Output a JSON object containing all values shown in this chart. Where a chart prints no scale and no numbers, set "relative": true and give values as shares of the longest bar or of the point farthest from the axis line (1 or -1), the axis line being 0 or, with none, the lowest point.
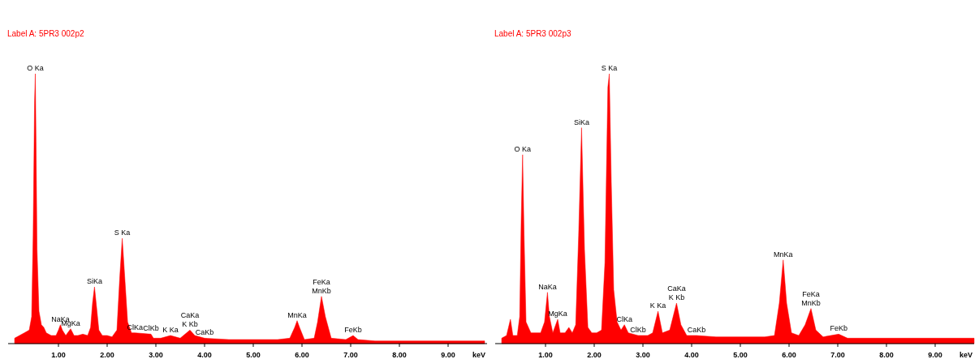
{
  "chart_data": [
    {
      "type": "area",
      "subtitle": "Label A: 5PR3 002p2",
      "xlabel": "keV",
      "relative": true,
      "xlim": [
        0,
        9.8
      ],
      "xticks": [
        {
          "value": 1,
          "label": "1.00"
        },
        {
          "value": 2,
          "label": "2.00"
        },
        {
          "value": 3,
          "label": "3.00"
        },
        {
          "value": 4,
          "label": "4.00"
        },
        {
          "value": 5,
          "label": "5.00"
        },
        {
          "value": 6,
          "label": "6.00"
        },
        {
          "value": 7,
          "label": "7.00"
        },
        {
          "value": 8,
          "label": "8.00"
        },
        {
          "value": 9,
          "label": "9.00"
        }
      ],
      "x": [
        0.1,
        0.2,
        0.3,
        0.4,
        0.45,
        0.48,
        0.51,
        0.525,
        0.54,
        0.56,
        0.6,
        0.65,
        0.7,
        0.75,
        0.85,
        0.95,
        1.0,
        1.04,
        1.08,
        1.15,
        1.25,
        1.32,
        1.4,
        1.5,
        1.6,
        1.66,
        1.7,
        1.74,
        1.78,
        1.83,
        1.9,
        2.0,
        2.1,
        2.2,
        2.26,
        2.31,
        2.36,
        2.42,
        2.5,
        2.57,
        2.9,
        2.95,
        3.1,
        3.3,
        3.5,
        3.7,
        3.8,
        4.0,
        4.5,
        5.0,
        5.5,
        5.75,
        5.85,
        5.9,
        5.95,
        6.05,
        6.25,
        6.32,
        6.4,
        6.48,
        6.6,
        6.9,
        7.05,
        7.15,
        7.5,
        8.0,
        8.5,
        9.0,
        9.5,
        9.75
      ],
      "series": [
        {
          "color": "#ff0000",
          "values": [
            0.02,
            0.03,
            0.04,
            0.05,
            0.1,
            0.4,
            0.9,
            1.0,
            0.75,
            0.35,
            0.12,
            0.07,
            0.06,
            0.04,
            0.03,
            0.03,
            0.05,
            0.07,
            0.05,
            0.03,
            0.055,
            0.03,
            0.03,
            0.035,
            0.03,
            0.06,
            0.15,
            0.21,
            0.14,
            0.05,
            0.03,
            0.03,
            0.025,
            0.05,
            0.25,
            0.39,
            0.25,
            0.08,
            0.04,
            0.04,
            0.035,
            0.02,
            0.02,
            0.03,
            0.02,
            0.05,
            0.03,
            0.02,
            0.015,
            0.015,
            0.015,
            0.02,
            0.06,
            0.085,
            0.06,
            0.015,
            0.02,
            0.08,
            0.175,
            0.1,
            0.02,
            0.015,
            0.03,
            0.015,
            0.01,
            0.01,
            0.01,
            0.01,
            0.01,
            0.01
          ]
        }
      ],
      "annotations": [
        {
          "text": "O Ka",
          "x": 0.525,
          "y": 1.0
        },
        {
          "text": "NaKa",
          "x": 1.04,
          "y": 0.07
        },
        {
          "text": "MgKa",
          "x": 1.25,
          "y": 0.055
        },
        {
          "text": "SiKa",
          "x": 1.74,
          "y": 0.21
        },
        {
          "text": "S Ka",
          "x": 2.31,
          "y": 0.39
        },
        {
          "text": "ClKa",
          "x": 2.57,
          "y": 0.04
        },
        {
          "text": "ClKb",
          "x": 2.9,
          "y": 0.035
        },
        {
          "text": "K Ka",
          "x": 3.3,
          "y": 0.03
        },
        {
          "text": "CaKa",
          "x": 3.7,
          "y": 0.05
        },
        {
          "text": "K Kb",
          "x": 3.7,
          "y": 0.05
        },
        {
          "text": "CaKb",
          "x": 4.0,
          "y": 0.02
        },
        {
          "text": "MnKa",
          "x": 5.9,
          "y": 0.085
        },
        {
          "text": "FeKa",
          "x": 6.4,
          "y": 0.175
        },
        {
          "text": "MnKb",
          "x": 6.4,
          "y": 0.175
        },
        {
          "text": "FeKb",
          "x": 7.05,
          "y": 0.03
        }
      ]
    },
    {
      "type": "area",
      "subtitle": "Label A: 5PR3 002p3",
      "xlabel": "keV",
      "relative": true,
      "xlim": [
        0,
        9.8
      ],
      "xticks": [
        {
          "value": 1,
          "label": "1.00"
        },
        {
          "value": 2,
          "label": "2.00"
        },
        {
          "value": 3,
          "label": "3.00"
        },
        {
          "value": 4,
          "label": "4.00"
        },
        {
          "value": 5,
          "label": "5.00"
        },
        {
          "value": 6,
          "label": "6.00"
        },
        {
          "value": 7,
          "label": "7.00"
        },
        {
          "value": 8,
          "label": "8.00"
        },
        {
          "value": 9,
          "label": "9.00"
        }
      ],
      "x": [
        0.1,
        0.2,
        0.28,
        0.33,
        0.42,
        0.47,
        0.5,
        0.53,
        0.56,
        0.6,
        0.7,
        0.8,
        0.9,
        0.98,
        1.04,
        1.08,
        1.15,
        1.25,
        1.3,
        1.4,
        1.48,
        1.55,
        1.62,
        1.68,
        1.74,
        1.8,
        1.87,
        1.95,
        2.05,
        2.15,
        2.22,
        2.28,
        2.31,
        2.35,
        2.4,
        2.47,
        2.55,
        2.62,
        2.7,
        2.9,
        3.1,
        3.2,
        3.31,
        3.4,
        3.55,
        3.69,
        3.78,
        3.9,
        4.1,
        4.5,
        5.0,
        5.5,
        5.7,
        5.8,
        5.88,
        5.95,
        6.05,
        6.2,
        6.33,
        6.45,
        6.55,
        6.7,
        7.02,
        7.2,
        7.5,
        8.0,
        8.5,
        9.0,
        9.5,
        9.8
      ],
      "series": [
        {
          "color": "#ff0000",
          "values": [
            0.02,
            0.03,
            0.09,
            0.03,
            0.03,
            0.1,
            0.45,
            0.7,
            0.4,
            0.08,
            0.04,
            0.04,
            0.04,
            0.08,
            0.19,
            0.1,
            0.04,
            0.09,
            0.04,
            0.04,
            0.06,
            0.04,
            0.07,
            0.4,
            0.8,
            0.35,
            0.06,
            0.04,
            0.04,
            0.05,
            0.3,
            0.95,
            1.0,
            0.6,
            0.2,
            0.08,
            0.05,
            0.07,
            0.04,
            0.03,
            0.03,
            0.04,
            0.12,
            0.04,
            0.05,
            0.15,
            0.07,
            0.03,
            0.03,
            0.025,
            0.025,
            0.025,
            0.03,
            0.15,
            0.31,
            0.15,
            0.04,
            0.03,
            0.07,
            0.13,
            0.05,
            0.025,
            0.035,
            0.02,
            0.02,
            0.02,
            0.02,
            0.02,
            0.02,
            0.02
          ]
        }
      ],
      "annotations": [
        {
          "text": "O Ka",
          "x": 0.53,
          "y": 0.7
        },
        {
          "text": "NaKa",
          "x": 1.04,
          "y": 0.19
        },
        {
          "text": "MgKa",
          "x": 1.25,
          "y": 0.09
        },
        {
          "text": "SiKa",
          "x": 1.74,
          "y": 0.8
        },
        {
          "text": "S Ka",
          "x": 2.31,
          "y": 1.0
        },
        {
          "text": "ClKa",
          "x": 2.62,
          "y": 0.07
        },
        {
          "text": "ClKb",
          "x": 2.9,
          "y": 0.03
        },
        {
          "text": "K Ka",
          "x": 3.31,
          "y": 0.12
        },
        {
          "text": "CaKa",
          "x": 3.69,
          "y": 0.15
        },
        {
          "text": "K Kb",
          "x": 3.69,
          "y": 0.15
        },
        {
          "text": "CaKb",
          "x": 4.1,
          "y": 0.03
        },
        {
          "text": "MnKa",
          "x": 5.88,
          "y": 0.31
        },
        {
          "text": "FeKa",
          "x": 6.45,
          "y": 0.13
        },
        {
          "text": "MnKb",
          "x": 6.45,
          "y": 0.13
        },
        {
          "text": "FeKb",
          "x": 7.02,
          "y": 0.035
        }
      ]
    }
  ]
}
